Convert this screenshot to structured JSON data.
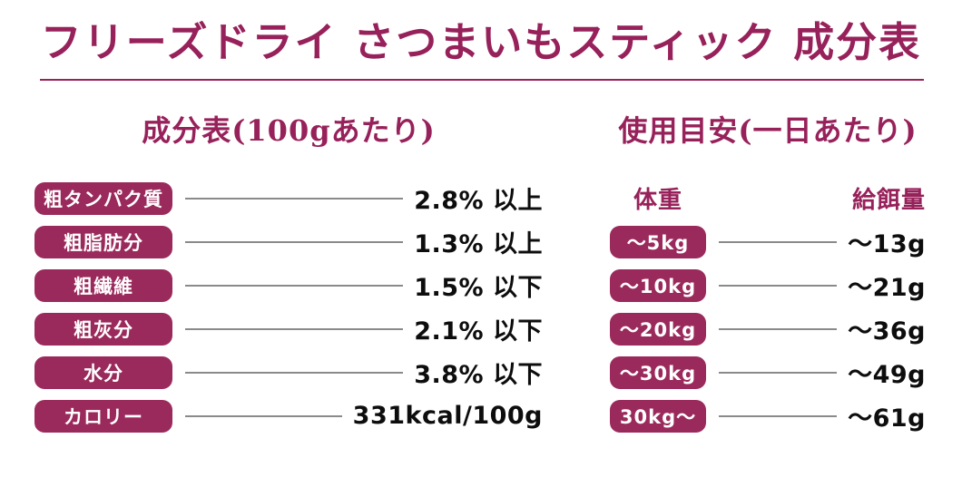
{
  "accent_color": "#9b2a5c",
  "line_color": "#8a8a8a",
  "title": "フリーズドライ さつまいもスティック 成分表",
  "composition": {
    "heading": "成分表(100gあたり)",
    "rows": [
      {
        "label": "粗タンパク質",
        "value": "2.8% 以上"
      },
      {
        "label": "粗脂肪分",
        "value": "1.3% 以上"
      },
      {
        "label": "粗繊維",
        "value": "1.5% 以下"
      },
      {
        "label": "粗灰分",
        "value": "2.1% 以下"
      },
      {
        "label": "水分",
        "value": "3.8% 以下"
      },
      {
        "label": "カロリー",
        "value": "331kcal/100g"
      }
    ]
  },
  "usage": {
    "heading": "使用目安(一日あたり)",
    "col_weight": "体重",
    "col_amount": "給餌量",
    "rows": [
      {
        "label": "～5kg",
        "value": "～13g"
      },
      {
        "label": "～10kg",
        "value": "～21g"
      },
      {
        "label": "～20kg",
        "value": "～36g"
      },
      {
        "label": "～30kg",
        "value": "～49g"
      },
      {
        "label": "30kg～",
        "value": "～61g"
      }
    ]
  }
}
